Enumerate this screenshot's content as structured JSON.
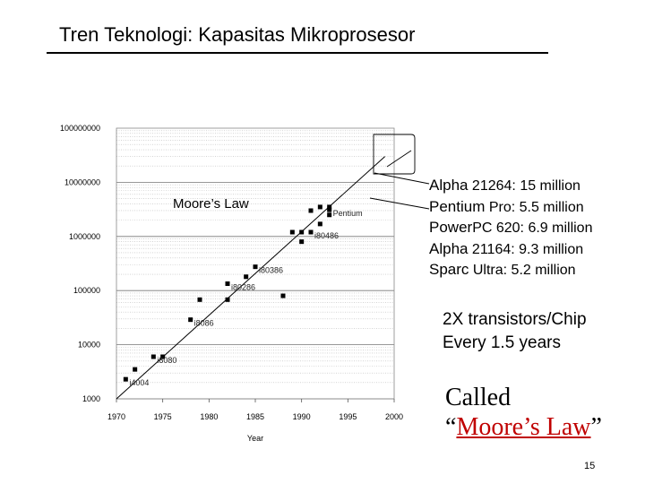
{
  "slide": {
    "title": "Tren Teknologi: Kapasitas Mikroprosesor",
    "page_number": "15"
  },
  "facts": [
    {
      "model": "Alpha",
      "rest": " 21264: 15 million"
    },
    {
      "model": "Pentium",
      "rest": " Pro: 5.5 million"
    },
    {
      "model": "Power",
      "rest": "PC 620: 6.9 million"
    },
    {
      "model": "Alpha",
      "rest": " 21164: 9.3 million"
    },
    {
      "model": "Sparc",
      "rest": " Ultra: 5.2 million"
    }
  ],
  "doubling": {
    "line1": "2X transistors/Chip",
    "line2": "Every 1.5 years"
  },
  "called": {
    "word": "Called",
    "open_quote": "“",
    "link": "Moore’s Law",
    "close_quote": "”"
  },
  "chart_data": {
    "type": "scatter",
    "title": "",
    "xlabel": "Year",
    "ylabel": "",
    "y_scale": "log",
    "xlim": [
      1970,
      2000
    ],
    "ylim": [
      1000,
      100000000
    ],
    "grid": true,
    "x_ticks": [
      "1970",
      "1975",
      "1980",
      "1985",
      "1990",
      "1995",
      "2000"
    ],
    "y_ticks": [
      {
        "value": 1000,
        "label": "1000"
      },
      {
        "value": 10000,
        "label": "10000"
      },
      {
        "value": 100000,
        "label": "100000"
      },
      {
        "value": 1000000,
        "label": "1000000"
      },
      {
        "value": 10000000,
        "label": "10000000"
      },
      {
        "value": 100000000,
        "label": "100000000"
      }
    ],
    "points": [
      {
        "x": 1971,
        "y": 2300
      },
      {
        "x": 1972,
        "y": 3500
      },
      {
        "x": 1974,
        "y": 6000
      },
      {
        "x": 1975,
        "y": 6000
      },
      {
        "x": 1978,
        "y": 29000
      },
      {
        "x": 1979,
        "y": 68000
      },
      {
        "x": 1982,
        "y": 68000
      },
      {
        "x": 1982,
        "y": 134000
      },
      {
        "x": 1984,
        "y": 180000
      },
      {
        "x": 1985,
        "y": 275000
      },
      {
        "x": 1988,
        "y": 80000
      },
      {
        "x": 1989,
        "y": 1200000
      },
      {
        "x": 1990,
        "y": 1200000
      },
      {
        "x": 1990,
        "y": 800000
      },
      {
        "x": 1991,
        "y": 1200000
      },
      {
        "x": 1991,
        "y": 3000000
      },
      {
        "x": 1992,
        "y": 1700000
      },
      {
        "x": 1992,
        "y": 3500000
      },
      {
        "x": 1993,
        "y": 3100000
      },
      {
        "x": 1993,
        "y": 3500000
      },
      {
        "x": 1993,
        "y": 2500000
      }
    ],
    "point_labels": [
      {
        "text": "i4004",
        "x": 1971,
        "y": 2300
      },
      {
        "text": "i8080",
        "x": 1974,
        "y": 6000
      },
      {
        "text": "i8086",
        "x": 1978,
        "y": 29000
      },
      {
        "text": "i80286",
        "x": 1982,
        "y": 134000
      },
      {
        "text": "i80386",
        "x": 1985,
        "y": 275000
      },
      {
        "text": "i80486",
        "x": 1991,
        "y": 1200000
      },
      {
        "text": "Pentium",
        "x": 1993,
        "y": 3100000
      }
    ],
    "trend_line": {
      "label": "Moore’s Law",
      "from": {
        "x": 1970,
        "y": 1000
      },
      "to": {
        "x": 1999,
        "y": 30000000
      }
    }
  }
}
